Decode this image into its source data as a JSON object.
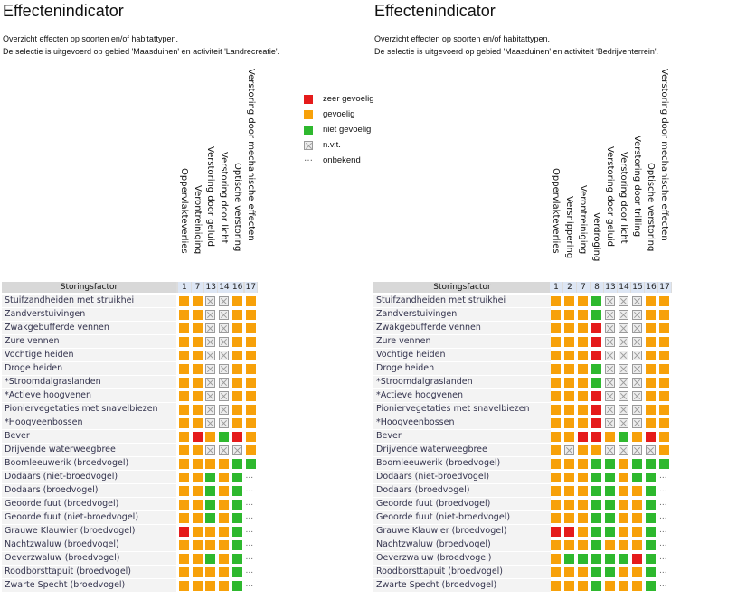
{
  "legend": [
    {
      "code": "r",
      "label": "zeer gevoelig"
    },
    {
      "code": "o",
      "label": "gevoelig"
    },
    {
      "code": "g",
      "label": "niet gevoelig"
    },
    {
      "code": "x",
      "label": "n.v.t."
    },
    {
      "code": "u",
      "label": "onbekend"
    }
  ],
  "colors": {
    "r": "#e51b1b",
    "o": "#f7a10a",
    "g": "#2eb82e",
    "x": "#ededed"
  },
  "unknown_symbol": "...",
  "panels": [
    {
      "title": "Effectenindicator",
      "desc1": "Overzicht effecten op soorten en/of habitattypen.",
      "desc2": "De selectie is uitgevoerd op gebied 'Maasduinen' en activiteit 'Landrecreatie'.",
      "header_label": "Storingsfactor",
      "col_numbers": [
        "1",
        "7",
        "13",
        "14",
        "16",
        "17"
      ],
      "col_names": [
        "Oppervlakteverlies",
        "Verontreiniging",
        "Verstoring door geluid",
        "Verstoring door licht",
        "Optische verstoring",
        "Verstoring door mechanische effecten"
      ],
      "rows": [
        {
          "label": "Stuifzandheiden met struikhei",
          "cells": "ooxxoo"
        },
        {
          "label": "Zandverstuivingen",
          "cells": "ooxxoo"
        },
        {
          "label": "Zwakgebufferde vennen",
          "cells": "ooxxoo"
        },
        {
          "label": "Zure vennen",
          "cells": "ooxxoo"
        },
        {
          "label": "Vochtige heiden",
          "cells": "ooxxoo"
        },
        {
          "label": "Droge heiden",
          "cells": "ooxxoo"
        },
        {
          "label": "*Stroomdalgraslanden",
          "cells": "ooxxoo"
        },
        {
          "label": "*Actieve hoogvenen",
          "cells": "ooxxoo"
        },
        {
          "label": "Pioniervegetaties met snavelbiezen",
          "cells": "ooxxoo"
        },
        {
          "label": "*Hoogveenbossen",
          "cells": "ooxxoo"
        },
        {
          "label": "Bever",
          "cells": "orogro"
        },
        {
          "label": "Drijvende waterweegbree",
          "cells": "ooxxxo"
        },
        {
          "label": "Boomleeuwerik (broedvogel)",
          "cells": "oooogg"
        },
        {
          "label": "Dodaars (niet-broedvogel)",
          "cells": "oogogu"
        },
        {
          "label": "Dodaars (broedvogel)",
          "cells": "oogogu"
        },
        {
          "label": "Geoorde fuut (broedvogel)",
          "cells": "oogogu"
        },
        {
          "label": "Geoorde fuut (niet-broedvogel)",
          "cells": "oogogu"
        },
        {
          "label": "Grauwe Klauwier (broedvogel)",
          "cells": "rooogu"
        },
        {
          "label": "Nachtzwaluw (broedvogel)",
          "cells": "oooogu"
        },
        {
          "label": "Oeverzwaluw (broedvogel)",
          "cells": "oogogu"
        },
        {
          "label": "Roodborsttapuit (broedvogel)",
          "cells": "oooogu"
        },
        {
          "label": "Zwarte Specht (broedvogel)",
          "cells": "oooogu"
        }
      ]
    },
    {
      "title": "Effectenindicator",
      "desc1": "Overzicht effecten op soorten en/of habitattypen.",
      "desc2": "De selectie is uitgevoerd op gebied 'Maasduinen' en activiteit 'Bedrijventerrein'.",
      "header_label": "Storingsfactor",
      "col_numbers": [
        "1",
        "2",
        "7",
        "8",
        "13",
        "14",
        "15",
        "16",
        "17"
      ],
      "col_names": [
        "Oppervlakteverlies",
        "Versnippering",
        "Verontreiniging",
        "Verdroging",
        "Verstoring door geluid",
        "Verstoring door licht",
        "Verstoring door trilling",
        "Optische verstoring",
        "Verstoring door mechanische effecten"
      ],
      "rows": [
        {
          "label": "Stuifzandheiden met struikhei",
          "cells": "ooogxxxoo"
        },
        {
          "label": "Zandverstuivingen",
          "cells": "ooogxxxoo"
        },
        {
          "label": "Zwakgebufferde vennen",
          "cells": "ooorxxxoo"
        },
        {
          "label": "Zure vennen",
          "cells": "ooorxxxoo"
        },
        {
          "label": "Vochtige heiden",
          "cells": "ooorxxxoo"
        },
        {
          "label": "Droge heiden",
          "cells": "ooogxxxoo"
        },
        {
          "label": "*Stroomdalgraslanden",
          "cells": "ooogxxxoo"
        },
        {
          "label": "*Actieve hoogvenen",
          "cells": "ooorxxxoo"
        },
        {
          "label": "Pioniervegetaties met snavelbiezen",
          "cells": "ooorxxxoo"
        },
        {
          "label": "*Hoogveenbossen",
          "cells": "ooorxxxoo"
        },
        {
          "label": "Bever",
          "cells": "oorrogoro"
        },
        {
          "label": "Drijvende waterweegbree",
          "cells": "oxooxxxxo"
        },
        {
          "label": "Boomleeuwerik (broedvogel)",
          "cells": "oooggoggg"
        },
        {
          "label": "Dodaars (niet-broedvogel)",
          "cells": "oooggoggu"
        },
        {
          "label": "Dodaars (broedvogel)",
          "cells": "oooggoogu"
        },
        {
          "label": "Geoorde fuut (broedvogel)",
          "cells": "oooggoogu"
        },
        {
          "label": "Geoorde fuut (niet-broedvogel)",
          "cells": "oooggoogu"
        },
        {
          "label": "Grauwe Klauwier (broedvogel)",
          "cells": "rroggoogu"
        },
        {
          "label": "Nachtzwaluw (broedvogel)",
          "cells": "ooogooogu"
        },
        {
          "label": "Oeverzwaluw (broedvogel)",
          "cells": "ogggggrgu"
        },
        {
          "label": "Roodborsttapuit (broedvogel)",
          "cells": "oooggoogu"
        },
        {
          "label": "Zwarte Specht (broedvogel)",
          "cells": "ooogooogu"
        }
      ]
    }
  ]
}
